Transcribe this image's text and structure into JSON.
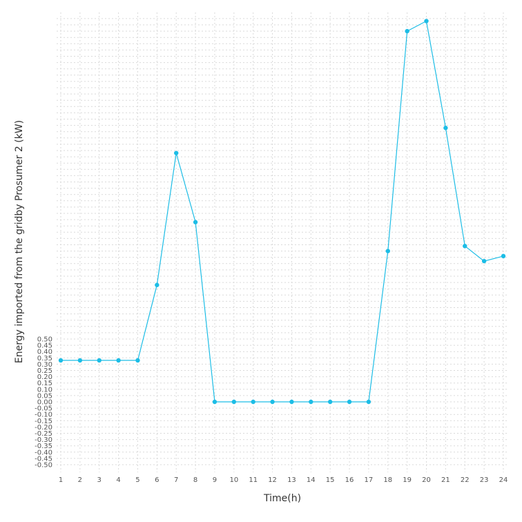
{
  "chart_data": {
    "type": "line",
    "xlabel": "Time(h)",
    "ylabel": "Energy imported from the gridby Prosumer 2 (kW)",
    "x": [
      1,
      2,
      3,
      4,
      5,
      6,
      7,
      8,
      9,
      10,
      11,
      12,
      13,
      14,
      15,
      16,
      17,
      18,
      19,
      20,
      21,
      22,
      23,
      24
    ],
    "series": [
      {
        "values": [
          0.33,
          0.33,
          0.33,
          0.33,
          0.33,
          0.93,
          1.98,
          1.43,
          0.0,
          0.0,
          0.0,
          0.0,
          0.0,
          0.0,
          0.0,
          0.0,
          0.0,
          1.2,
          2.95,
          3.03,
          2.18,
          1.24,
          1.12,
          1.16
        ]
      }
    ],
    "y_tick_labels": [
      "0.50",
      "0.45",
      "0.40",
      "0.35",
      "0.30",
      "0.25",
      "0.20",
      "0.15",
      "0.10",
      "0.05",
      "0.00",
      "-0.05",
      "-0.10",
      "-0.15",
      "-0.20",
      "-0.25",
      "-0.30",
      "-0.35",
      "-0.40",
      "-0.45",
      "-0.50"
    ],
    "ylim": [
      -0.5,
      3.05
    ],
    "grid": true,
    "line_color": "#1cbde6",
    "marker_color": "#1cbde6"
  }
}
